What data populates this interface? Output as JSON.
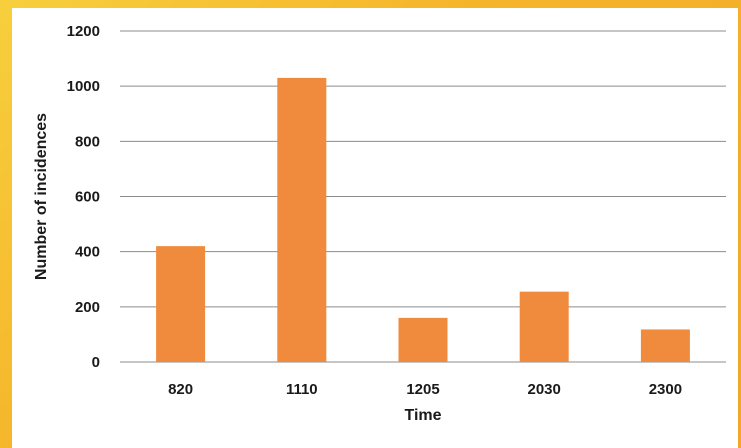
{
  "chart_data": {
    "type": "bar",
    "title": "",
    "xlabel": "Time",
    "ylabel": "Number of incidences",
    "categories": [
      "820",
      "1110",
      "1205",
      "2030",
      "2300"
    ],
    "values": [
      420,
      1030,
      160,
      255,
      118
    ],
    "ylim": [
      0,
      1200
    ],
    "yticks": [
      "0",
      "200",
      "400",
      "600",
      "800",
      "1000",
      "1200"
    ],
    "ytick_values": [
      0,
      200,
      400,
      600,
      800,
      1000,
      1200
    ],
    "grid": true,
    "legend": "none",
    "colors": {
      "bar": "#f08a3c",
      "grid": "#8c8c8c",
      "background": "#ffffff"
    }
  }
}
